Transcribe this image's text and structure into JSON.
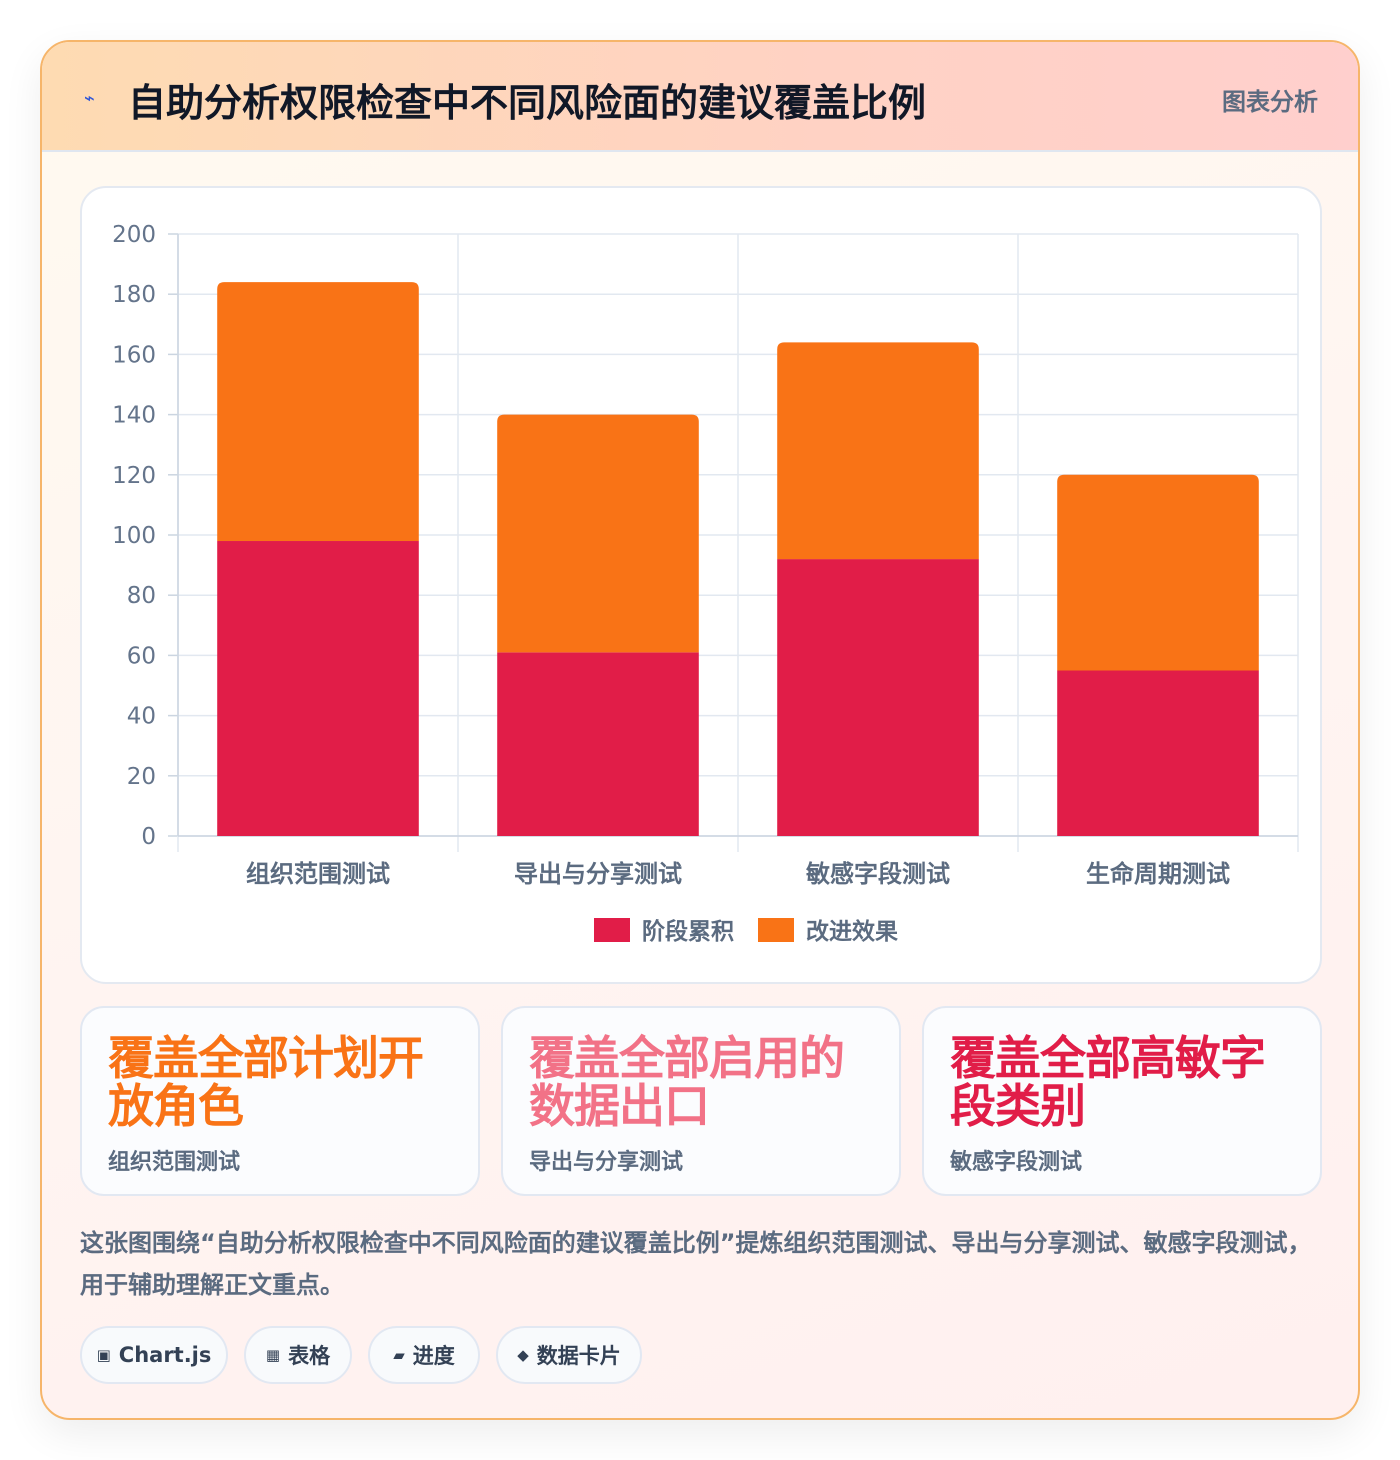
{
  "header": {
    "icon": "lightning-icon",
    "title": "自助分析权限检查中不同风险面的建议覆盖比例",
    "tag": "图表分析"
  },
  "chart_data": {
    "type": "bar",
    "stacked": true,
    "categories": [
      "组织范围测试",
      "导出与分享测试",
      "敏感字段测试",
      "生命周期测试"
    ],
    "series": [
      {
        "name": "阶段累积",
        "values": [
          98,
          61,
          92,
          55
        ],
        "color": "#e11d48"
      },
      {
        "name": "改进效果",
        "values": [
          86,
          79,
          72,
          65
        ],
        "color": "#f97316"
      }
    ],
    "ylim": [
      0,
      200
    ],
    "yticks": [
      0,
      20,
      40,
      60,
      80,
      100,
      120,
      140,
      160,
      180,
      200
    ],
    "grid": true,
    "legend_position": "bottom"
  },
  "stats": [
    {
      "value": "覆盖全部计划开放角色",
      "label": "组织范围测试",
      "color": "#f97316"
    },
    {
      "value": "覆盖全部启用的数据出口",
      "label": "导出与分享测试",
      "color": "#f27287"
    },
    {
      "value": "覆盖全部高敏字段类别",
      "label": "敏感字段测试",
      "color": "#e11d48"
    }
  ],
  "description": "这张图围绕“自助分析权限检查中不同风险面的建议覆盖比例”提炼组织范围测试、导出与分享测试、敏感字段测试，用于辅助理解正文重点。",
  "pills": [
    {
      "icon": "▣",
      "icon_name": "chart-icon",
      "label": "Chart.js"
    },
    {
      "icon": "▦",
      "icon_name": "table-icon",
      "label": "表格"
    },
    {
      "icon": "▰",
      "icon_name": "progress-icon",
      "label": "进度"
    },
    {
      "icon": "◆",
      "icon_name": "data-card-icon",
      "label": "数据卡片"
    }
  ]
}
